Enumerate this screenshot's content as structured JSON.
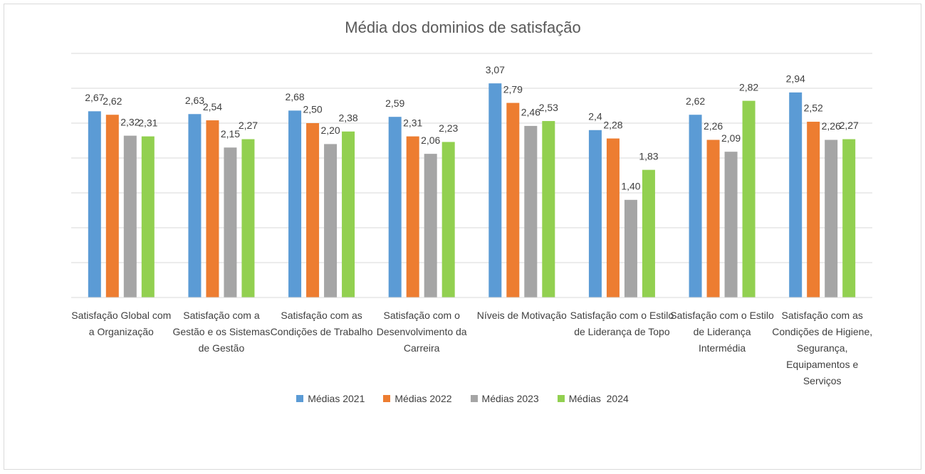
{
  "chart_data": {
    "type": "bar",
    "title": "Média dos dominios de satisfação",
    "categories": [
      "Satisfação Global com a Organização",
      "Satisfação com a Gestão e os Sistemas de Gestão",
      "Satisfação com as Condições de Trabalho",
      "Satisfação com o Desenvolvimento da Carreira",
      "Níveis de Motivação",
      "Satisfação com o Estilo de Liderança de Topo",
      "Satisfação com o Estilo de Liderança Intermédia",
      "Satisfação com as Condições de Higiene, Segurança, Equipamentos e Serviços"
    ],
    "series": [
      {
        "name": "Médias 2021",
        "color": "#5b9bd5",
        "values": [
          2.67,
          2.63,
          2.68,
          2.59,
          3.07,
          2.4,
          2.62,
          2.94
        ],
        "value_labels": [
          "2,67",
          "2,63",
          "2,68",
          "2,59",
          "3,07",
          "2,4",
          "2,62",
          "2,94"
        ]
      },
      {
        "name": "Médias 2022",
        "color": "#ed7d31",
        "values": [
          2.62,
          2.54,
          2.5,
          2.31,
          2.79,
          2.28,
          2.26,
          2.52
        ],
        "value_labels": [
          "2,62",
          "2,54",
          "2,50",
          "2,31",
          "2,79",
          "2,28",
          "2,26",
          "2,52"
        ]
      },
      {
        "name": "Médias 2023",
        "color": "#a5a5a5",
        "values": [
          2.32,
          2.15,
          2.2,
          2.06,
          2.46,
          1.4,
          2.09,
          2.26
        ],
        "value_labels": [
          "2,32",
          "2,15",
          "2,20",
          "2,06",
          "2,46",
          "1,40",
          "2,09",
          "2,26"
        ]
      },
      {
        "name": "Médias  2024",
        "color": "#92d050",
        "values": [
          2.31,
          2.27,
          2.38,
          2.23,
          2.53,
          1.83,
          2.82,
          2.27
        ],
        "value_labels": [
          "2,31",
          "2,27",
          "2,38",
          "2,23",
          "2,53",
          "1,83",
          "2,82",
          "2,27"
        ]
      }
    ],
    "ylim": [
      0,
      3.5
    ],
    "yticks": [
      0,
      0.5,
      1,
      1.5,
      2,
      2.5,
      3,
      3.5
    ],
    "grid": true
  }
}
